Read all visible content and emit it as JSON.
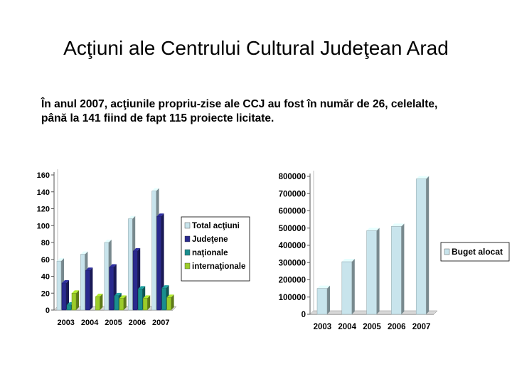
{
  "slide": {
    "title": "Acţiuni ale Centrului Cultural Judeţean Arad",
    "subtitle_line1": "În anul 2007, acţiunile propriu-zise ale CCJ au fost în număr de 26, celelalte,",
    "subtitle_line2": "până la 141 fiind de fapt 115 proiecte licitate."
  },
  "colors": {
    "total": "#c8e4ec",
    "judetene": "#2a2a8e",
    "nationale": "#1a8e8e",
    "internationale": "#9ccc2a",
    "buget": "#c8e4ec"
  },
  "chart_data": [
    {
      "type": "bar",
      "categories": [
        "2003",
        "2004",
        "2005",
        "2006",
        "2007"
      ],
      "ylim": [
        0,
        160
      ],
      "yticks": [
        "0",
        "20",
        "40",
        "60",
        "80",
        "100",
        "120",
        "140",
        "160"
      ],
      "legend_position": "right",
      "series": [
        {
          "name": "Total acţiuni",
          "values": [
            58,
            66,
            80,
            108,
            141
          ]
        },
        {
          "name": "Judeţene",
          "values": [
            32,
            47,
            51,
            70,
            111
          ]
        },
        {
          "name": "naţionale",
          "values": [
            6,
            0,
            17,
            25,
            26
          ]
        },
        {
          "name": "internaţionale",
          "values": [
            20,
            16,
            14,
            14,
            15
          ]
        }
      ]
    },
    {
      "type": "bar",
      "categories": [
        "2003",
        "2004",
        "2005",
        "2006",
        "2007"
      ],
      "ylim": [
        0,
        800000
      ],
      "yticks": [
        "0",
        "100000",
        "200000",
        "300000",
        "400000",
        "500000",
        "600000",
        "700000",
        "800000"
      ],
      "legend_position": "right",
      "series": [
        {
          "name": "Buget alocat",
          "values": [
            150000,
            305000,
            485000,
            510000,
            785000
          ]
        }
      ]
    }
  ]
}
